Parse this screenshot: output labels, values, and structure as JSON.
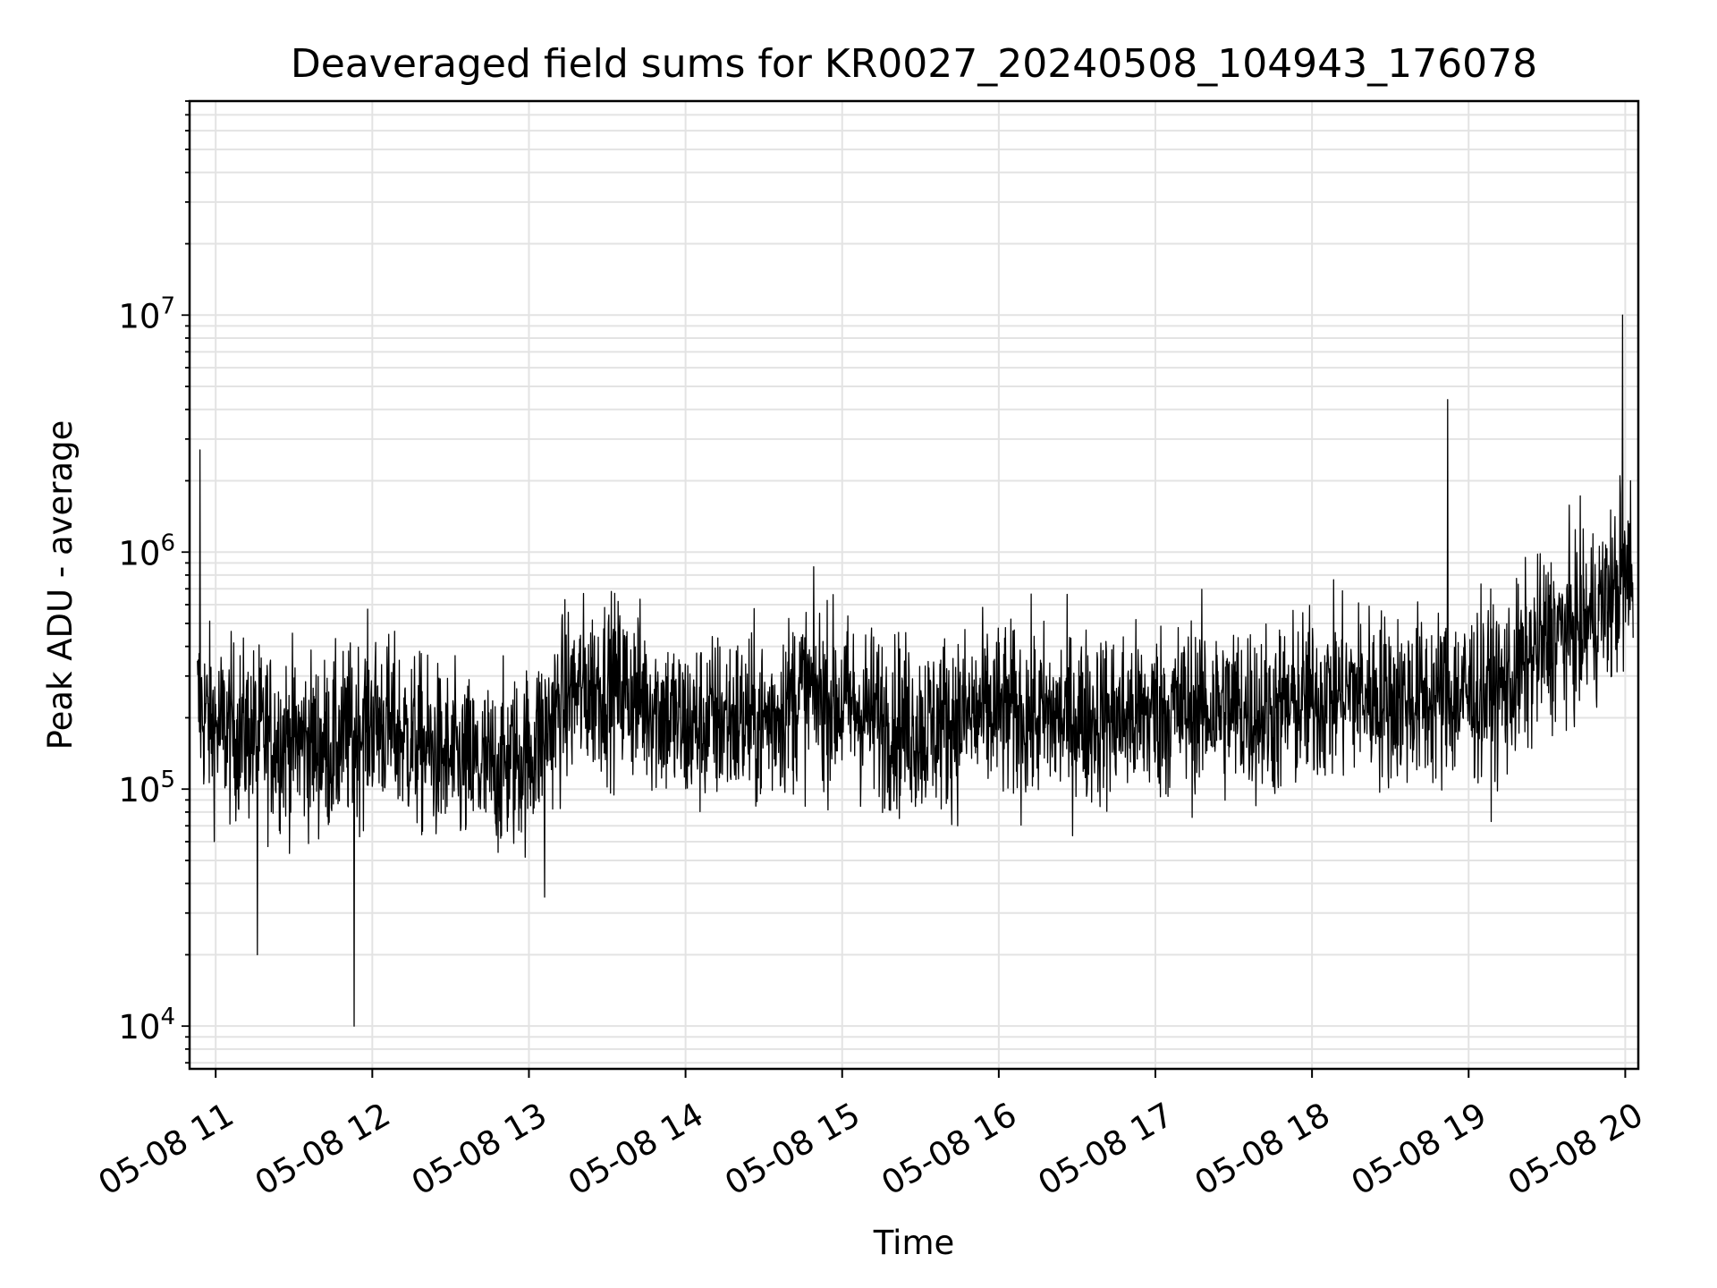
{
  "chart_data": {
    "type": "line",
    "title": "Deaveraged field sums for KR0027_20240508_104943_176078",
    "xlabel": "Time",
    "ylabel": "Peak ADU - average",
    "yscale": "log",
    "ylim": [
      6600,
      80000000
    ],
    "xlim": [
      "05-08 10:50",
      "05-08 20:05"
    ],
    "grid": "on (major and minor)",
    "line_color": "#000000",
    "x_ticks": [
      {
        "t": "05-08 11:00",
        "label": "05-08 11"
      },
      {
        "t": "05-08 12:00",
        "label": "05-08 12"
      },
      {
        "t": "05-08 13:00",
        "label": "05-08 13"
      },
      {
        "t": "05-08 14:00",
        "label": "05-08 14"
      },
      {
        "t": "05-08 15:00",
        "label": "05-08 15"
      },
      {
        "t": "05-08 16:00",
        "label": "05-08 16"
      },
      {
        "t": "05-08 17:00",
        "label": "05-08 17"
      },
      {
        "t": "05-08 18:00",
        "label": "05-08 18"
      },
      {
        "t": "05-08 19:00",
        "label": "05-08 19"
      },
      {
        "t": "05-08 20:00",
        "label": "05-08 20"
      }
    ],
    "y_ticks": [
      {
        "value": 10000,
        "base": "10",
        "exp": "4"
      },
      {
        "value": 100000,
        "base": "10",
        "exp": "5"
      },
      {
        "value": 1000000,
        "base": "10",
        "exp": "6"
      },
      {
        "value": 10000000,
        "base": "10",
        "exp": "7"
      }
    ],
    "series": [
      {
        "x": [
          "05-08 10:50",
          "05-08 11:00",
          "05-08 11:15",
          "05-08 11:30",
          "05-08 11:45",
          "05-08 12:00",
          "05-08 12:15",
          "05-08 12:30",
          "05-08 12:45",
          "05-08 13:00",
          "05-08 13:15",
          "05-08 13:30",
          "05-08 13:45",
          "05-08 14:00",
          "05-08 14:15",
          "05-08 14:30",
          "05-08 14:45",
          "05-08 15:00",
          "05-08 15:15",
          "05-08 15:30",
          "05-08 15:45",
          "05-08 16:00",
          "05-08 16:15",
          "05-08 16:30",
          "05-08 16:45",
          "05-08 17:00",
          "05-08 17:15",
          "05-08 17:30",
          "05-08 17:45",
          "05-08 18:00",
          "05-08 18:15",
          "05-08 18:30",
          "05-08 18:45",
          "05-08 19:00",
          "05-08 19:15",
          "05-08 19:30",
          "05-08 19:45",
          "05-08 20:00",
          "05-08 20:05"
        ],
        "y": [
          250000,
          180000,
          170000,
          160000,
          150000,
          200000,
          160000,
          130000,
          120000,
          140000,
          250000,
          280000,
          240000,
          180000,
          200000,
          190000,
          260000,
          230000,
          200000,
          180000,
          200000,
          210000,
          200000,
          200000,
          200000,
          210000,
          220000,
          220000,
          210000,
          240000,
          260000,
          240000,
          240000,
          250000,
          270000,
          430000,
          500000,
          750000,
          700000
        ]
      }
    ],
    "spikes": [
      {
        "t": "05-08 10:54",
        "y": 2700000
      },
      {
        "t": "05-08 11:16",
        "y": 20000
      },
      {
        "t": "05-08 11:53",
        "y": 10000
      },
      {
        "t": "05-08 13:06",
        "y": 35000
      },
      {
        "t": "05-08 18:52",
        "y": 4400000
      },
      {
        "t": "05-08 19:59",
        "y": 10000000
      },
      {
        "t": "05-08 19:58",
        "y": 2100000
      },
      {
        "t": "05-08 20:02",
        "y": 2000000
      }
    ]
  }
}
